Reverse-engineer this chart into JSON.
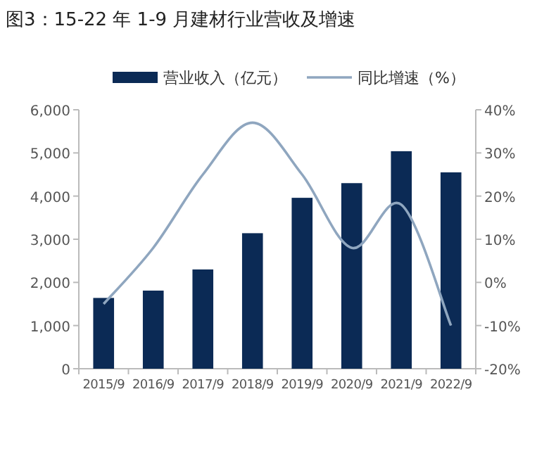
{
  "chart_data": {
    "type": "bar",
    "title": "图3：15-22 年 1-9 月建材行业营收及增速",
    "categories": [
      "2015/9",
      "2016/9",
      "2017/9",
      "2018/9",
      "2019/9",
      "2020/9",
      "2021/9",
      "2022/9"
    ],
    "series": [
      {
        "name": "营业收入（亿元）",
        "color": "#0b2a55",
        "values": [
          1640,
          1810,
          2300,
          3140,
          3960,
          4300,
          5040,
          4550
        ]
      },
      {
        "name": "同比增速（%）",
        "type": "line",
        "axis": "y2",
        "color": "#8fa6bf",
        "values": [
          -5,
          8,
          25,
          37,
          25,
          8,
          18,
          -10
        ]
      }
    ],
    "ylim": [
      0,
      6000
    ],
    "yticks": [
      0,
      {
        "value": 1000,
        "label": "1,000"
      },
      {
        "value": 2000,
        "label": "2,000"
      },
      {
        "value": 3000,
        "label": "3,000"
      },
      {
        "value": 4000,
        "label": "4,000"
      },
      {
        "value": 5000,
        "label": "5,000"
      },
      {
        "value": 6000,
        "label": "6,000"
      }
    ],
    "y2lim": [
      -20,
      40
    ],
    "y2ticks": [
      {
        "value": -20,
        "label": "-20%"
      },
      {
        "value": -10,
        "label": "-10%"
      },
      {
        "value": 0,
        "label": "0%"
      },
      {
        "value": 10,
        "label": "10%"
      },
      {
        "value": 20,
        "label": "20%"
      },
      {
        "value": 30,
        "label": "30%"
      },
      {
        "value": 40,
        "label": "40%"
      }
    ],
    "legend": "top",
    "grid": false,
    "marker": "none"
  }
}
